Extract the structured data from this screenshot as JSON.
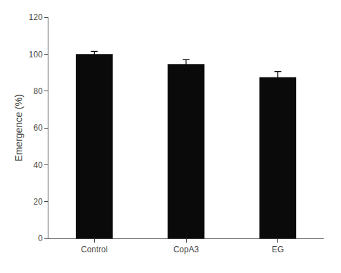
{
  "chart_data": {
    "type": "bar",
    "ylabel": "Emergence (%)",
    "categories": [
      "Control",
      "CopA3",
      "EG"
    ],
    "values": [
      100.0,
      94.5,
      87.5
    ],
    "errors": [
      1.5,
      2.5,
      3.0
    ],
    "color": "#0a0a0a",
    "ylim": [
      0,
      120
    ],
    "yticks": [
      0,
      20,
      40,
      60,
      80,
      100,
      120
    ],
    "grid": false
  }
}
